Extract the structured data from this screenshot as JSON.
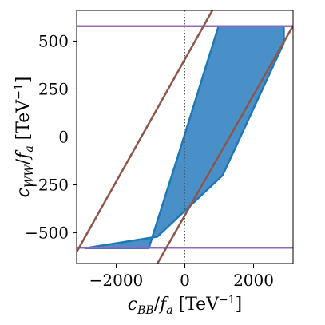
{
  "chart_data": {
    "type": "area",
    "title": "",
    "xlabel": "c_BB/f_a [TeV^-1]",
    "ylabel": "c_WW/f_a [TeV^-1]",
    "xlim": [
      -3150,
      3150
    ],
    "ylim": [
      -660,
      660
    ],
    "x_ticks": [
      -2000,
      0,
      2000
    ],
    "y_ticks": [
      -500,
      -250,
      0,
      250,
      500
    ],
    "x_tick_labels": [
      "−2000",
      "0",
      "2000"
    ],
    "y_tick_labels": [
      "−500",
      "−250",
      "0",
      "250",
      "500"
    ],
    "reference_lines": {
      "x": 0,
      "y": 0,
      "style": "dotted"
    },
    "allowed_region": {
      "color": "#4a90c8",
      "edge_color": "#1f77b4",
      "vertices": [
        [
          -3000,
          -580
        ],
        [
          -1000,
          -580
        ],
        [
          900,
          580
        ],
        [
          2900,
          580
        ],
        [
          2900,
          490
        ],
        [
          1000,
          -580
        ]
      ],
      "polygon": [
        [
          -2900,
          -580
        ],
        [
          -1050,
          -580
        ],
        [
          -200,
          -100
        ],
        [
          980,
          578
        ],
        [
          2880,
          578
        ],
        [
          2880,
          490
        ],
        [
          1100,
          -200
        ],
        [
          -800,
          -520
        ]
      ]
    },
    "bounds": {
      "horizontal": {
        "color": "#9467bd",
        "values": [
          578,
          -578
        ]
      },
      "diagonal": {
        "color": "#8c564b",
        "lines": [
          {
            "points": [
              [
                -3150,
                -600
              ],
              [
                800,
                660
              ]
            ]
          },
          {
            "points": [
              [
                -800,
                -660
              ],
              [
                3150,
                580
              ]
            ]
          }
        ]
      }
    },
    "grid": false,
    "legend": "none"
  }
}
